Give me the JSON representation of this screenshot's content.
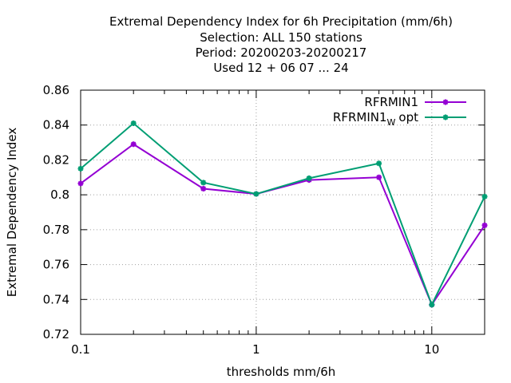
{
  "chart_data": {
    "type": "line",
    "title_lines": [
      "Extremal Dependency Index  for 6h Precipitation (mm/6h)",
      "Selection: ALL    150 stations",
      "Period: 20200203-20200217",
      "Used  12 + 06 07 ... 24"
    ],
    "xlabel": "thresholds mm/6h",
    "ylabel": "Extremal Dependency Index",
    "x_scale": "log",
    "xlim": [
      0.1,
      20
    ],
    "ylim": [
      0.72,
      0.86
    ],
    "x_ticks": [
      {
        "value": 0.1,
        "label": "0.1"
      },
      {
        "value": 1,
        "label": "1"
      },
      {
        "value": 10,
        "label": "10"
      }
    ],
    "x_minor_ticks": [
      0.2,
      0.5,
      2,
      5,
      20
    ],
    "y_ticks": [
      {
        "value": 0.72,
        "label": "0.72"
      },
      {
        "value": 0.74,
        "label": "0.74"
      },
      {
        "value": 0.76,
        "label": "0.76"
      },
      {
        "value": 0.78,
        "label": "0.78"
      },
      {
        "value": 0.8,
        "label": "0.8"
      },
      {
        "value": 0.82,
        "label": "0.82"
      },
      {
        "value": 0.84,
        "label": "0.84"
      },
      {
        "value": 0.86,
        "label": "0.86"
      }
    ],
    "grid": true,
    "legend_position": "top-right",
    "x": [
      0.1,
      0.2,
      0.5,
      1,
      2,
      5,
      10,
      20
    ],
    "series": [
      {
        "name": "RFRMIN1",
        "color": "#9400d3",
        "values": [
          0.8065,
          0.829,
          0.8035,
          0.8005,
          0.8085,
          0.81,
          0.737,
          0.7825
        ]
      },
      {
        "name_main": "RFRMIN1",
        "name_sub": "W",
        "name_suffix": "opt",
        "color": "#009e73",
        "values": [
          0.815,
          0.841,
          0.807,
          0.8005,
          0.8095,
          0.818,
          0.737,
          0.799
        ]
      }
    ]
  }
}
